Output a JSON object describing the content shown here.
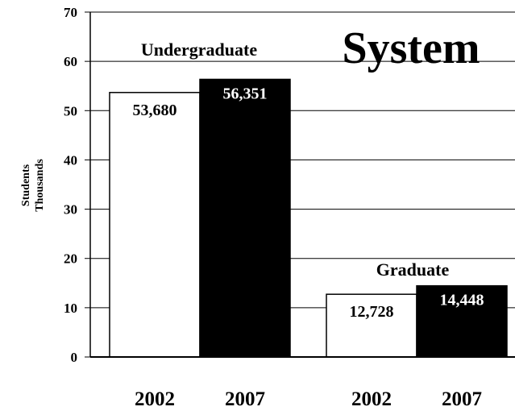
{
  "chart_data": {
    "type": "bar",
    "title": "System",
    "ylabel_lines": [
      "Students",
      "Thousands"
    ],
    "ylim": [
      0,
      70
    ],
    "yticks": [
      0,
      10,
      20,
      30,
      40,
      50,
      60,
      70
    ],
    "grid": true,
    "colors": {
      "2002": "#ffffff",
      "2007": "#000000"
    },
    "groups": [
      {
        "name": "Undergraduate",
        "bars": [
          {
            "year": "2002",
            "value": 53.68,
            "label": "53,680"
          },
          {
            "year": "2007",
            "value": 56.351,
            "label": "56,351"
          }
        ]
      },
      {
        "name": "Graduate",
        "bars": [
          {
            "year": "2002",
            "value": 12.728,
            "label": "12,728"
          },
          {
            "year": "2007",
            "value": 14.448,
            "label": "14,448"
          }
        ]
      }
    ]
  }
}
